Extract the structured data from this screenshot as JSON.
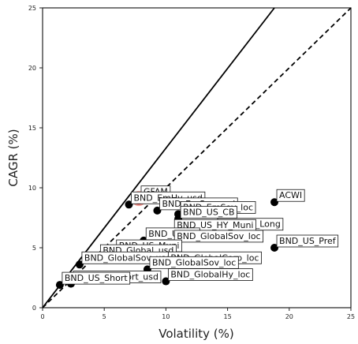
{
  "chart_data": {
    "type": "scatter",
    "xlabel": "Volatility (%)",
    "ylabel": "CAGR (%)",
    "xlim": [
      0,
      25
    ],
    "ylim": [
      0,
      25
    ],
    "xticks": [
      "0",
      "5",
      "10",
      "15",
      "20",
      "25"
    ],
    "yticks": [
      "0",
      "5",
      "10",
      "15",
      "20",
      "25"
    ],
    "grid": false,
    "reference_lines": [
      {
        "style": "solid",
        "slope": 1.33,
        "description": "solid line through origin"
      },
      {
        "style": "dashed",
        "slope": 1.0,
        "description": "dashed line through origin"
      }
    ],
    "points": [
      {
        "label": "ACWI",
        "x": 18.8,
        "y": 8.8
      },
      {
        "label": "GFAM",
        "x": 7.8,
        "y": 9.1,
        "highlight": true
      },
      {
        "label": "BND_EmHy_usd",
        "x": 7.0,
        "y": 8.6
      },
      {
        "label": "BND_EmSov_usd",
        "x": 9.3,
        "y": 8.1
      },
      {
        "label": "BND_EmSov_loc",
        "x": 11.0,
        "y": 7.8
      },
      {
        "label": "BND_US_CB",
        "x": 11.0,
        "y": 7.4
      },
      {
        "label": "BND_US_Long",
        "x": 14.0,
        "y": 6.4
      },
      {
        "label": "BND_US_HY_Muni",
        "x": 10.5,
        "y": 6.3
      },
      {
        "label": "BND_US_IG",
        "x": 8.2,
        "y": 5.6
      },
      {
        "label": "BND_GlobalSov_loc",
        "x": 10.5,
        "y": 5.4
      },
      {
        "label": "BND_US_Pref",
        "x": 18.8,
        "y": 5.0
      },
      {
        "label": "BND_US_Muni",
        "x": 5.8,
        "y": 4.6
      },
      {
        "label": "BND_Global_usd",
        "x": 4.5,
        "y": 4.2
      },
      {
        "label": "BND_GlobalSov_usd",
        "x": 3.0,
        "y": 3.6
      },
      {
        "label": "BND_GlobalCorp_loc",
        "x": 10.0,
        "y": 3.6
      },
      {
        "label": "BND_GlobalSov_loc",
        "x": 8.5,
        "y": 3.2
      },
      {
        "label": "BND_GlobalHy_loc",
        "x": 10.0,
        "y": 2.2
      },
      {
        "label": "BND_US_Short_usd",
        "x": 2.3,
        "y": 2.0
      },
      {
        "label": "BND_US_Short",
        "x": 1.4,
        "y": 1.9
      }
    ],
    "visible_labels": [
      {
        "text": "ACWI",
        "point": 0
      },
      {
        "text": "GFAM",
        "point": 1
      },
      {
        "text": "BND_EmHy_usd",
        "point": 2
      },
      {
        "text": "BND_EmSov_usd",
        "point": 3
      },
      {
        "text": "BND_EmSov_loc",
        "point": 4
      },
      {
        "text": "BND_US_CB",
        "point": 5
      },
      {
        "text": "BND_US_Long",
        "point": 6
      },
      {
        "text": "BND_US_HY_Muni",
        "point": 7
      },
      {
        "text": "BND_US_IG",
        "point": 8
      },
      {
        "text": "BND_GlobalSov_loc",
        "point": 9
      },
      {
        "text": "BND_US_Pref",
        "point": 10
      },
      {
        "text": "BND_US_Muni",
        "point": 11
      },
      {
        "text": "BND_Global_usd",
        "point": 12
      },
      {
        "text": "BND_GlobalSov_usd",
        "point": 13
      },
      {
        "text": "BND_GlobalCorp_loc",
        "point": 14
      },
      {
        "text": "BND_GlobalSov_loc",
        "point": 15
      },
      {
        "text": "BND_GlobalHy_loc",
        "point": 16
      },
      {
        "text": "BND_US_Short_usd",
        "point": 17
      },
      {
        "text": "BND_US_Short",
        "point": 18
      }
    ],
    "colors": {
      "points": "#000000",
      "highlight": "#e8201e",
      "highlight_edge": "#f4a09a",
      "lines": "#000000"
    }
  }
}
